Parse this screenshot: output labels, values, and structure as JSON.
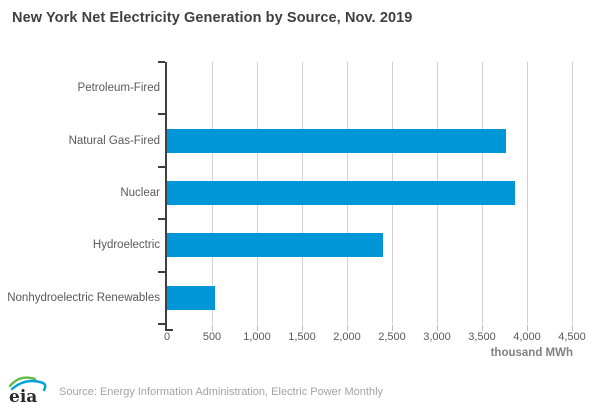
{
  "chart_data": {
    "type": "bar",
    "orientation": "horizontal",
    "title": "New York Net Electricity Generation by Source, Nov. 2019",
    "categories": [
      "Petroleum-Fired",
      "Natural Gas-Fired",
      "Nuclear",
      "Hydroelectric",
      "Nonhydroelectric Renewables"
    ],
    "values": [
      0,
      3770,
      3870,
      2400,
      535
    ],
    "xlabel": "thousand MWh",
    "ylabel": "",
    "xlim": [
      0,
      4500
    ],
    "xticks": [
      {
        "label": "0",
        "value": 0
      },
      {
        "label": "500",
        "value": 500
      },
      {
        "label": "1,000",
        "value": 1000
      },
      {
        "label": "1,500",
        "value": 1500
      },
      {
        "label": "2,000",
        "value": 2000
      },
      {
        "label": "2,500",
        "value": 2500
      },
      {
        "label": "3,000",
        "value": 3000
      },
      {
        "label": "3,500",
        "value": 3500
      },
      {
        "label": "4,000",
        "value": 4000
      },
      {
        "label": "4,500",
        "value": 4500
      }
    ],
    "grid": true,
    "legend": false
  },
  "colors": {
    "bar": "#0096d7",
    "title": "#3f3f3f",
    "label": "#595959",
    "axis": "#3f3f3f",
    "grid": "#d2d2d2",
    "unit": "#808080",
    "source": "#a3a3a3",
    "logo-green": "#62bb46",
    "logo-blue": "#00a0dc",
    "logo-text": "#2b2b2b"
  },
  "footer": {
    "logo_text": "eia",
    "source": "Source: Energy Information Administration, Electric Power Monthly"
  }
}
